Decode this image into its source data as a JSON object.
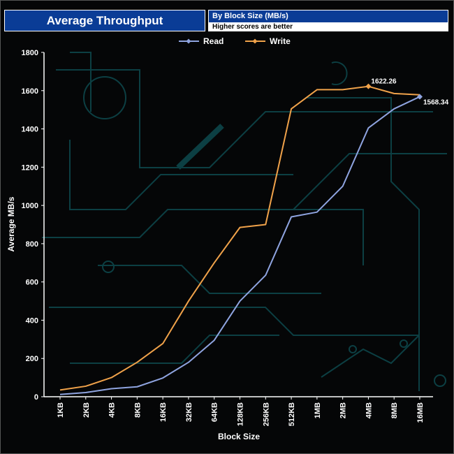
{
  "header": {
    "title": "Average Throughput",
    "subtitle": "By Block Size (MB/s)",
    "note": "Higher scores are better"
  },
  "chart_data": {
    "type": "line",
    "categories": [
      "1KB",
      "2KB",
      "4KB",
      "8KB",
      "16KB",
      "32KB",
      "64KB",
      "128KB",
      "256KB",
      "512KB",
      "1MB",
      "2MB",
      "4MB",
      "8MB",
      "16MB"
    ],
    "series": [
      {
        "name": "Read",
        "color": "#8fa4e0",
        "values": [
          12,
          22,
          42,
          52,
          98,
          180,
          295,
          500,
          635,
          940,
          965,
          1100,
          1405,
          1505,
          1568.34
        ]
      },
      {
        "name": "Write",
        "color": "#f0a24a",
        "values": [
          35,
          55,
          100,
          180,
          278,
          500,
          700,
          885,
          900,
          1505,
          1605,
          1605,
          1622.26,
          1585,
          1578
        ]
      }
    ],
    "data_labels": [
      {
        "series": "Write",
        "category": "4MB",
        "text": "1622.26"
      },
      {
        "series": "Read",
        "category": "16MB",
        "text": "1568.34"
      }
    ],
    "xlabel": "Block Size",
    "ylabel": "Average MB/s",
    "ylim": [
      0,
      1800
    ],
    "yticks": [
      "0",
      "200",
      "400",
      "600",
      "800",
      "1000",
      "1200",
      "1400",
      "1600",
      "1800"
    ],
    "legend_position": "top-center",
    "grid": false
  }
}
